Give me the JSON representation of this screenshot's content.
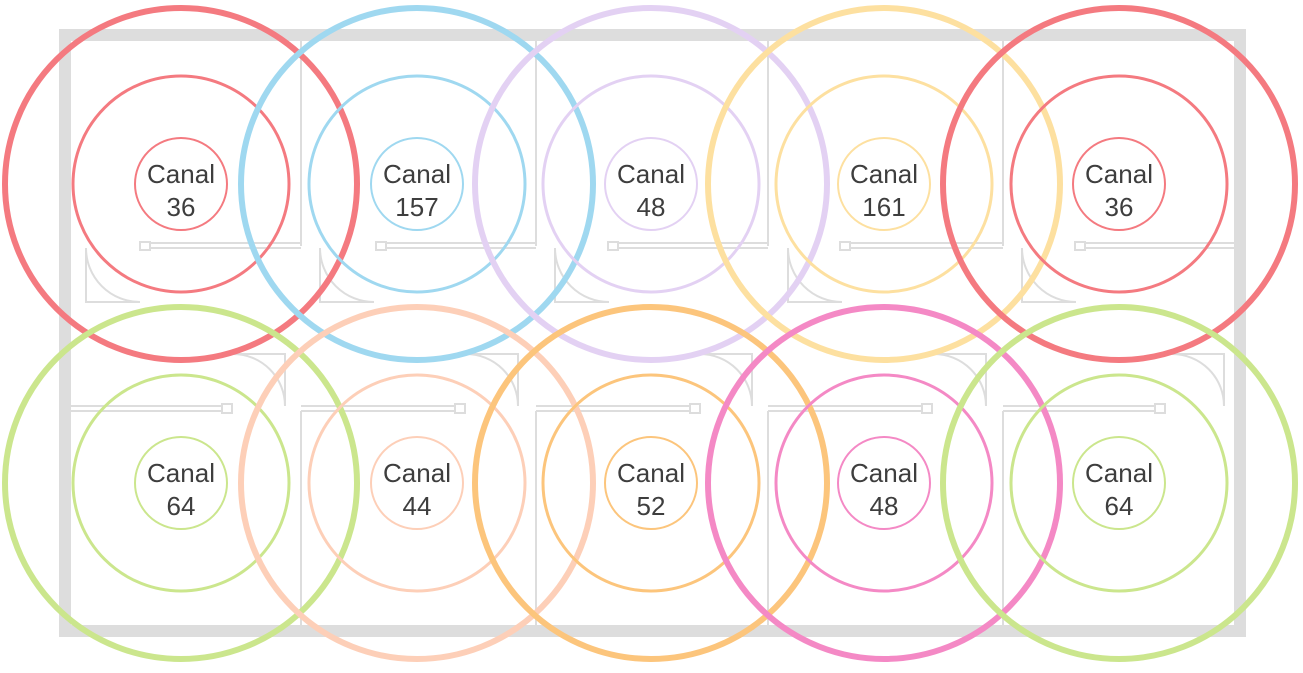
{
  "palette": {
    "red": "#f47a80",
    "blue": "#9fd8f0",
    "purple": "#e3d1f3",
    "yellow": "#fde0a0",
    "green": "#cbe68d",
    "peach": "#fdcfb8",
    "orange": "#fcc57c",
    "pink": "#f489c5",
    "wall": "#dddddd"
  },
  "channels": [
    {
      "label": "Canal",
      "channel": "36",
      "color": "red",
      "row": 0,
      "col": 0
    },
    {
      "label": "Canal",
      "channel": "157",
      "color": "blue",
      "row": 0,
      "col": 1
    },
    {
      "label": "Canal",
      "channel": "48",
      "color": "purple",
      "row": 0,
      "col": 2
    },
    {
      "label": "Canal",
      "channel": "161",
      "color": "yellow",
      "row": 0,
      "col": 3
    },
    {
      "label": "Canal",
      "channel": "36",
      "color": "red",
      "row": 0,
      "col": 4
    },
    {
      "label": "Canal",
      "channel": "64",
      "color": "green",
      "row": 1,
      "col": 0
    },
    {
      "label": "Canal",
      "channel": "44",
      "color": "peach",
      "row": 1,
      "col": 1
    },
    {
      "label": "Canal",
      "channel": "52",
      "color": "orange",
      "row": 1,
      "col": 2
    },
    {
      "label": "Canal",
      "channel": "48",
      "color": "pink",
      "row": 1,
      "col": 3
    },
    {
      "label": "Canal",
      "channel": "64",
      "color": "green",
      "row": 1,
      "col": 4
    }
  ]
}
